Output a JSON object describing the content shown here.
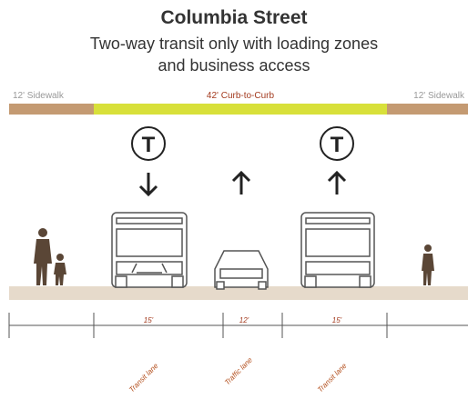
{
  "header": {
    "title": "Columbia Street",
    "subtitle": [
      "Two-way transit only with loading zones",
      "and business access"
    ]
  },
  "widths": {
    "left_sidewalk": "12' Sidewalk",
    "curb_to_curb": "42' Curb-to-Curb",
    "right_sidewalk": "12' Sidewalk"
  },
  "lanes": [
    {
      "symbol": "T",
      "width": "15'",
      "label": "Transit lane"
    },
    {
      "width": "12'",
      "label": "Traffic lane"
    },
    {
      "symbol": "T",
      "width": "15'",
      "label": "Transit lane"
    }
  ]
}
